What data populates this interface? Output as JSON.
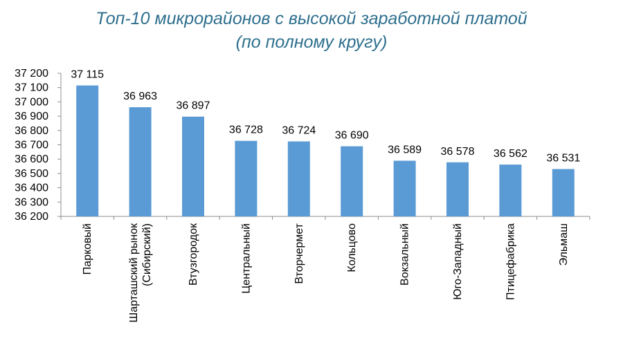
{
  "title": {
    "line1": "Топ-10 микрорайонов с высокой заработной платой",
    "line2": "(по полному кругу)"
  },
  "chart_data": {
    "type": "bar",
    "categories": [
      [
        "Парковый"
      ],
      [
        "Шарташский рынок",
        "(Сибирский)"
      ],
      [
        "Втузгородок"
      ],
      [
        "Центральный"
      ],
      [
        "Вторчермет"
      ],
      [
        "Кольцово"
      ],
      [
        "Вокзальный"
      ],
      [
        "Юго-Западный"
      ],
      [
        "Птицефабрика"
      ],
      [
        "Эльмаш"
      ]
    ],
    "values": [
      37115,
      36963,
      36897,
      36728,
      36724,
      36690,
      36589,
      36578,
      36562,
      36531
    ],
    "value_labels": [
      "37 115",
      "36 963",
      "36 897",
      "36 728",
      "36 724",
      "36 690",
      "36 589",
      "36 578",
      "36 562",
      "36 531"
    ],
    "ylim": [
      36200,
      37200
    ],
    "yticks": [
      36200,
      36300,
      36400,
      36500,
      36600,
      36700,
      36800,
      36900,
      37000,
      37100,
      37200
    ],
    "ytick_labels": [
      "36 200",
      "36 300",
      "36 400",
      "36 500",
      "36 600",
      "36 700",
      "36 800",
      "36 900",
      "37 000",
      "37 100",
      "37 200"
    ],
    "bar_color": "#5b9bd5",
    "axis_color": "#8c8c8c",
    "grid": false
  }
}
